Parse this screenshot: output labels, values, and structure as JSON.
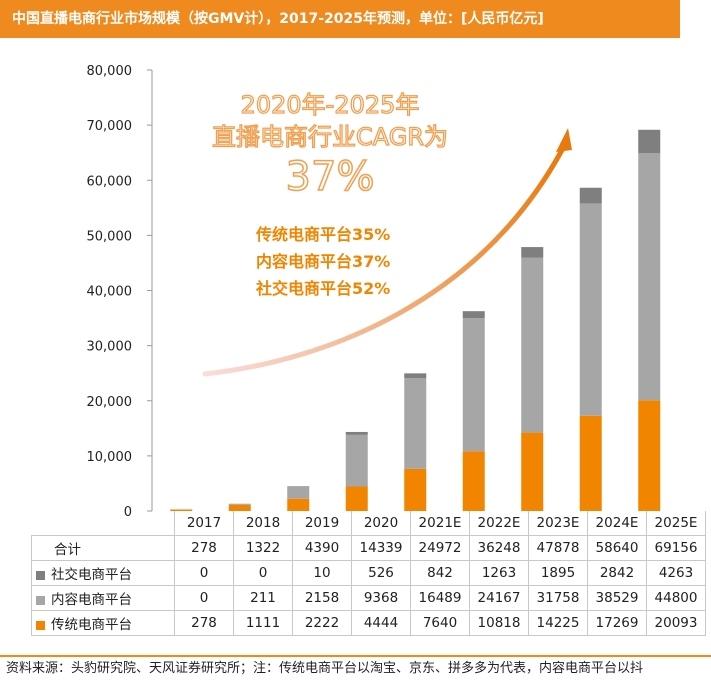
{
  "title": "中国直播电商行业市场规模（按GMV计），2017-2025年预测，单位：[人民币亿元]",
  "annotation": {
    "cagr_line1": "2020年-2025年",
    "cagr_line2": "直播电商行业CAGR为",
    "cagr_value": "37%",
    "seg_traditional": "传统电商平台35%",
    "seg_content": "内容电商平台37%",
    "seg_social": "社交电商平台52%"
  },
  "table": {
    "total_label": "合计",
    "totals": [
      "278",
      "1322",
      "4390",
      "14339",
      "24972",
      "36248",
      "47878",
      "58640",
      "69156"
    ]
  },
  "source_note": "资料来源：头豹研究院、天风证券研究所；注：传统电商平台以淘宝、京东、拼多多为代表，内容电商平台以抖",
  "colors": {
    "traditional": "#f28500",
    "content": "#a6a6a6",
    "social": "#7f7f7f",
    "title_bg": "#ee8a1e"
  },
  "chart_data": {
    "type": "bar",
    "stacked": true,
    "categories": [
      "2017",
      "2018",
      "2019",
      "2020",
      "2021E",
      "2022E",
      "2023E",
      "2024E",
      "2025E"
    ],
    "series": [
      {
        "name": "传统电商平台",
        "values": [
          278,
          1111,
          2222,
          4444,
          7640,
          10818,
          14225,
          17269,
          20093
        ]
      },
      {
        "name": "内容电商平台",
        "values": [
          0,
          211,
          2158,
          9368,
          16489,
          24167,
          31758,
          38529,
          44800
        ]
      },
      {
        "name": "社交电商平台",
        "values": [
          0,
          0,
          10,
          526,
          842,
          1263,
          1895,
          2842,
          4263
        ]
      }
    ],
    "ylim": [
      0,
      80000
    ],
    "yticks": [
      "0",
      "10,000",
      "20,000",
      "30,000",
      "40,000",
      "50,000",
      "60,000",
      "70,000",
      "80,000"
    ],
    "title": "",
    "xlabel": "",
    "ylabel": "",
    "grid": false,
    "legend": "table-left"
  }
}
